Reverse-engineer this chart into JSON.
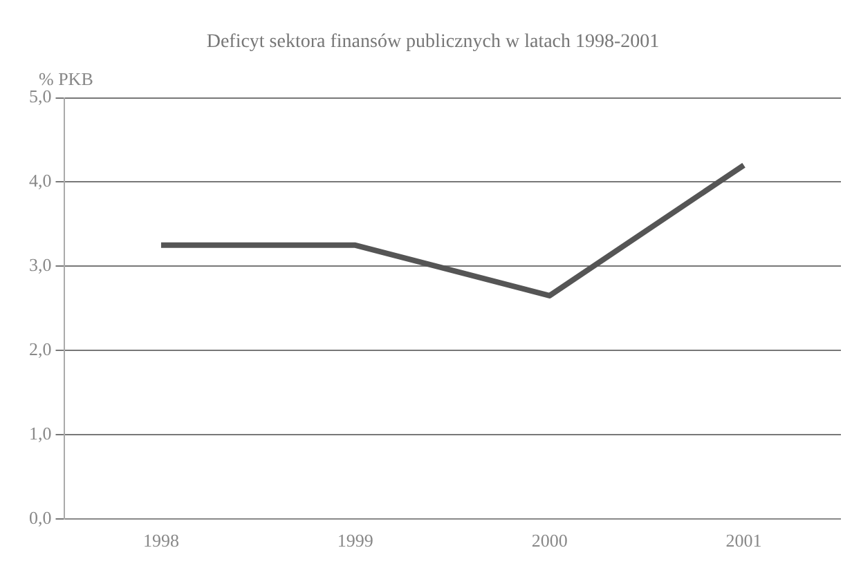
{
  "chart_data": {
    "type": "line",
    "title": "Deficyt sektora finansów publicznych w latach 1998-2001",
    "ylabel": "% PKB",
    "categories": [
      "1998",
      "1999",
      "2000",
      "2001"
    ],
    "series": [
      {
        "color": "#555555",
        "values": [
          3.25,
          3.25,
          2.65,
          4.2
        ]
      }
    ],
    "ylim": [
      0,
      5
    ],
    "yticks": [
      {
        "value": 0,
        "label": "0,0"
      },
      {
        "value": 1,
        "label": "1,0"
      },
      {
        "value": 2,
        "label": "2,0"
      },
      {
        "value": 3,
        "label": "3,0"
      },
      {
        "value": 4,
        "label": "4,0"
      },
      {
        "value": 5,
        "label": "5,0"
      }
    ],
    "grid": "y",
    "legend": false,
    "marker": "none",
    "line_style": "solid"
  }
}
